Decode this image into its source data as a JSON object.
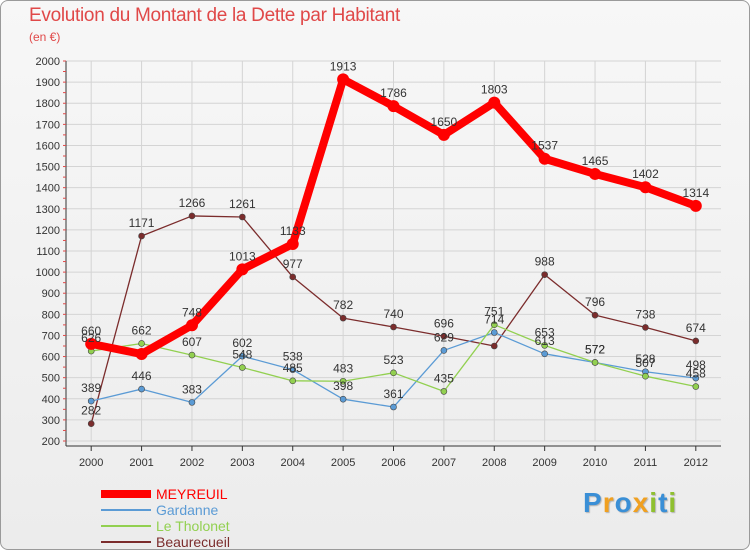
{
  "header": {
    "title": "Evolution du Montant de la Dette par Habitant",
    "subtitle": "(en €)"
  },
  "legend": [
    {
      "name": "MEYREUIL",
      "color": "#ff0000"
    },
    {
      "name": "Gardanne",
      "color": "#5b9bd5"
    },
    {
      "name": "Le Tholonet",
      "color": "#92d050"
    },
    {
      "name": "Beaurecueil",
      "color": "#7b2c2c"
    }
  ],
  "logo": {
    "letters": [
      {
        "ch": "P",
        "color": "#3a8fd6"
      },
      {
        "ch": "r",
        "color": "#f0a020"
      },
      {
        "ch": "o",
        "color": "#3a8fd6"
      },
      {
        "ch": "x",
        "color": "#f0a020"
      },
      {
        "ch": "i",
        "color": "#8fc030"
      },
      {
        "ch": "t",
        "color": "#3a8fd6"
      },
      {
        "ch": "i",
        "color": "#8fc030"
      }
    ]
  },
  "chart_data": {
    "type": "line",
    "title": "Evolution du Montant de la Dette par Habitant",
    "subtitle": "(en €)",
    "x": [
      "2000",
      "2001",
      "2002",
      "2003",
      "2004",
      "2005",
      "2006",
      "2007",
      "2008",
      "2009",
      "2010",
      "2011",
      "2012"
    ],
    "yticks": [
      "200",
      "300",
      "400",
      "500",
      "600",
      "700",
      "800",
      "900",
      "1000",
      "1100",
      "1200",
      "1300",
      "1400",
      "1500",
      "1600",
      "1700",
      "1800",
      "1900",
      "2000"
    ],
    "ylim": [
      200,
      2000
    ],
    "grid": true,
    "legend_position": "bottom-left",
    "series": [
      {
        "name": "MEYREUIL",
        "color": "#ff0000",
        "values": [
          660,
          612,
          748,
          1013,
          1133,
          1913,
          1786,
          1650,
          1803,
          1537,
          1465,
          1402,
          1314
        ],
        "labels": [
          "660",
          "",
          "748",
          "1013",
          "1133",
          "1913",
          "1786",
          "1650",
          "1803",
          "1537",
          "1465",
          "1402",
          "1314"
        ]
      },
      {
        "name": "Gardanne",
        "color": "#5b9bd5",
        "values": [
          389,
          446,
          383,
          602,
          538,
          398,
          361,
          629,
          714,
          613,
          572,
          528,
          498
        ],
        "labels": [
          "389",
          "446",
          "383",
          "602",
          "538",
          "398",
          "361",
          "629",
          "714",
          "613",
          "572",
          "528",
          "498"
        ]
      },
      {
        "name": "Le Tholonet",
        "color": "#92d050",
        "values": [
          626,
          662,
          607,
          548,
          485,
          483,
          523,
          435,
          751,
          653,
          572,
          507,
          458
        ],
        "labels": [
          "626",
          "662",
          "607",
          "548",
          "485",
          "483",
          "523",
          "435",
          "751",
          "653",
          "572",
          "507",
          "458"
        ]
      },
      {
        "name": "Beaurecueil",
        "color": "#7b2c2c",
        "values": [
          282,
          1171,
          1266,
          1261,
          977,
          782,
          740,
          696,
          650,
          988,
          796,
          738,
          674
        ],
        "labels": [
          "282",
          "1171",
          "1266",
          "1261",
          "977",
          "782",
          "740",
          "696",
          "",
          "988",
          "796",
          "738",
          "674"
        ]
      }
    ]
  }
}
